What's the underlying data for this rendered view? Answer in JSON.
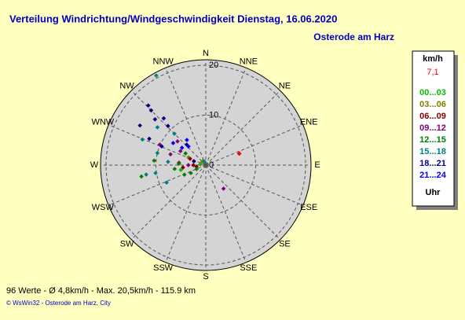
{
  "chart_data": {
    "type": "polar-scatter",
    "title": "Verteilung Windrichtung/Windgeschwindigkeit  Dienstag, 16.06.2020",
    "subtitle": "Osterode am Harz",
    "directions": [
      "N",
      "NNE",
      "NE",
      "ENE",
      "E",
      "ESE",
      "SE",
      "SSE",
      "S",
      "SSW",
      "SW",
      "WSW",
      "W",
      "WNW",
      "NW",
      "NNW"
    ],
    "rlim": [
      0,
      21.1
    ],
    "rticks": [
      0,
      10,
      20
    ],
    "legend_title": "km/h",
    "legend_footer": "Uhr",
    "current": {
      "direction": 71,
      "speed": 7.1,
      "value_label": "7,1",
      "color": "#ff0000"
    },
    "series": [
      {
        "name": "00...03",
        "color": "#00c000",
        "direction": [
          259,
          278,
          321
        ],
        "speed": [
          5.1,
          1.1,
          1.0
        ]
      },
      {
        "name": "03...06",
        "color": "#808000",
        "direction": [
          294,
          297
        ],
        "speed": [
          3.8,
          1.0
        ]
      },
      {
        "name": "06...09",
        "color": "#800000",
        "direction": [
          275,
          264,
          270,
          292,
          261
        ],
        "speed": [
          5.4,
          4.6,
          2.5,
          3.4,
          1.9
        ]
      },
      {
        "name": "09...12",
        "color": "#800080",
        "direction": [
          287,
          294,
          310,
          299,
          143,
          270
        ],
        "speed": [
          7.4,
          10.1,
          7.4,
          5.8,
          5.9,
          3.5
        ]
      },
      {
        "name": "12...15",
        "color": "#008000",
        "direction": [
          260,
          275,
          263,
          246,
          242,
          273,
          247,
          300
        ],
        "speed": [
          13.1,
          10.4,
          6.3,
          4.7,
          3.4,
          5.4,
          2.0,
          4.7
        ]
      },
      {
        "name": "15...18",
        "color": "#008080",
        "direction": [
          331,
          308,
          292,
          284,
          261,
          261,
          246,
          275,
          315,
          338
        ],
        "speed": [
          20.5,
          12.3,
          13.7,
          10.0,
          10.2,
          12.1,
          8.6,
          7.6,
          8.9,
          0.8
        ]
      },
      {
        "name": "18...21",
        "color": "#000080",
        "direction": [
          316,
          315,
          312,
          318,
          316,
          301,
          295,
          293,
          317,
          288
        ],
        "speed": [
          16.6,
          15.5,
          13.7,
          12.6,
          10.9,
          15.4,
          12.5,
          9.6,
          5.6,
          2.5
        ]
      },
      {
        "name": "21...24",
        "color": "#0000ff",
        "direction": [
          323,
          317,
          306,
          304
        ],
        "speed": [
          6.3,
          5.1,
          5.9,
          7.9
        ]
      }
    ],
    "footer": "96 Werte  -  Ø 4,8km/h  -  Max. 20,5km/h  -  115.9 km",
    "credit": "© WsWin32  -  Osterode am Harz, City"
  }
}
